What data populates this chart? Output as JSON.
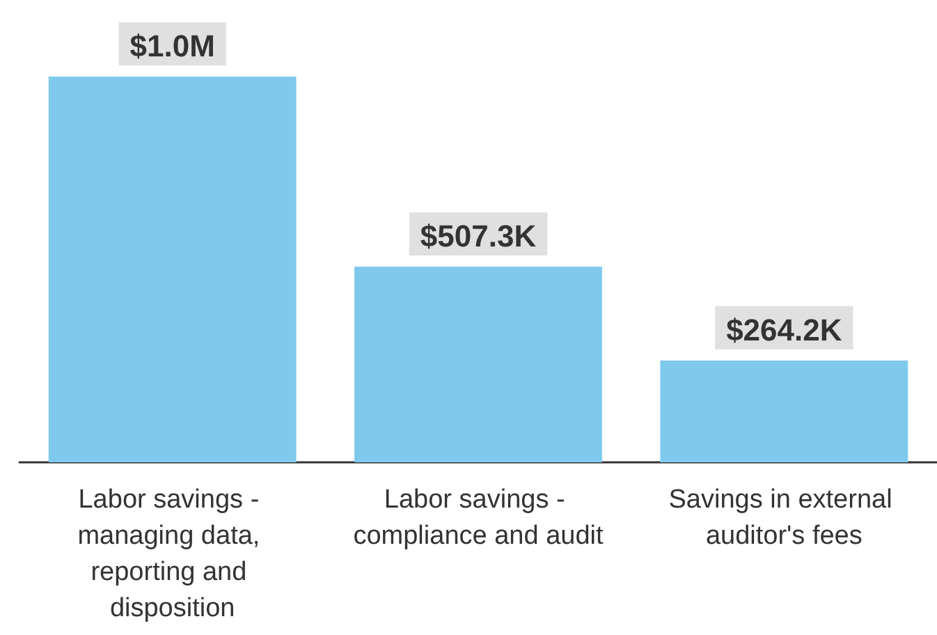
{
  "chart_data": {
    "type": "bar",
    "categories": [
      "Labor savings - managing data, reporting and disposition",
      "Labor savings - compliance and audit",
      "Savings in external auditor's fees"
    ],
    "values": [
      1000000,
      507300,
      264200
    ],
    "value_labels": [
      "$1.0M",
      "$507.3K",
      "$264.2K"
    ],
    "color": "#7fcaec"
  }
}
